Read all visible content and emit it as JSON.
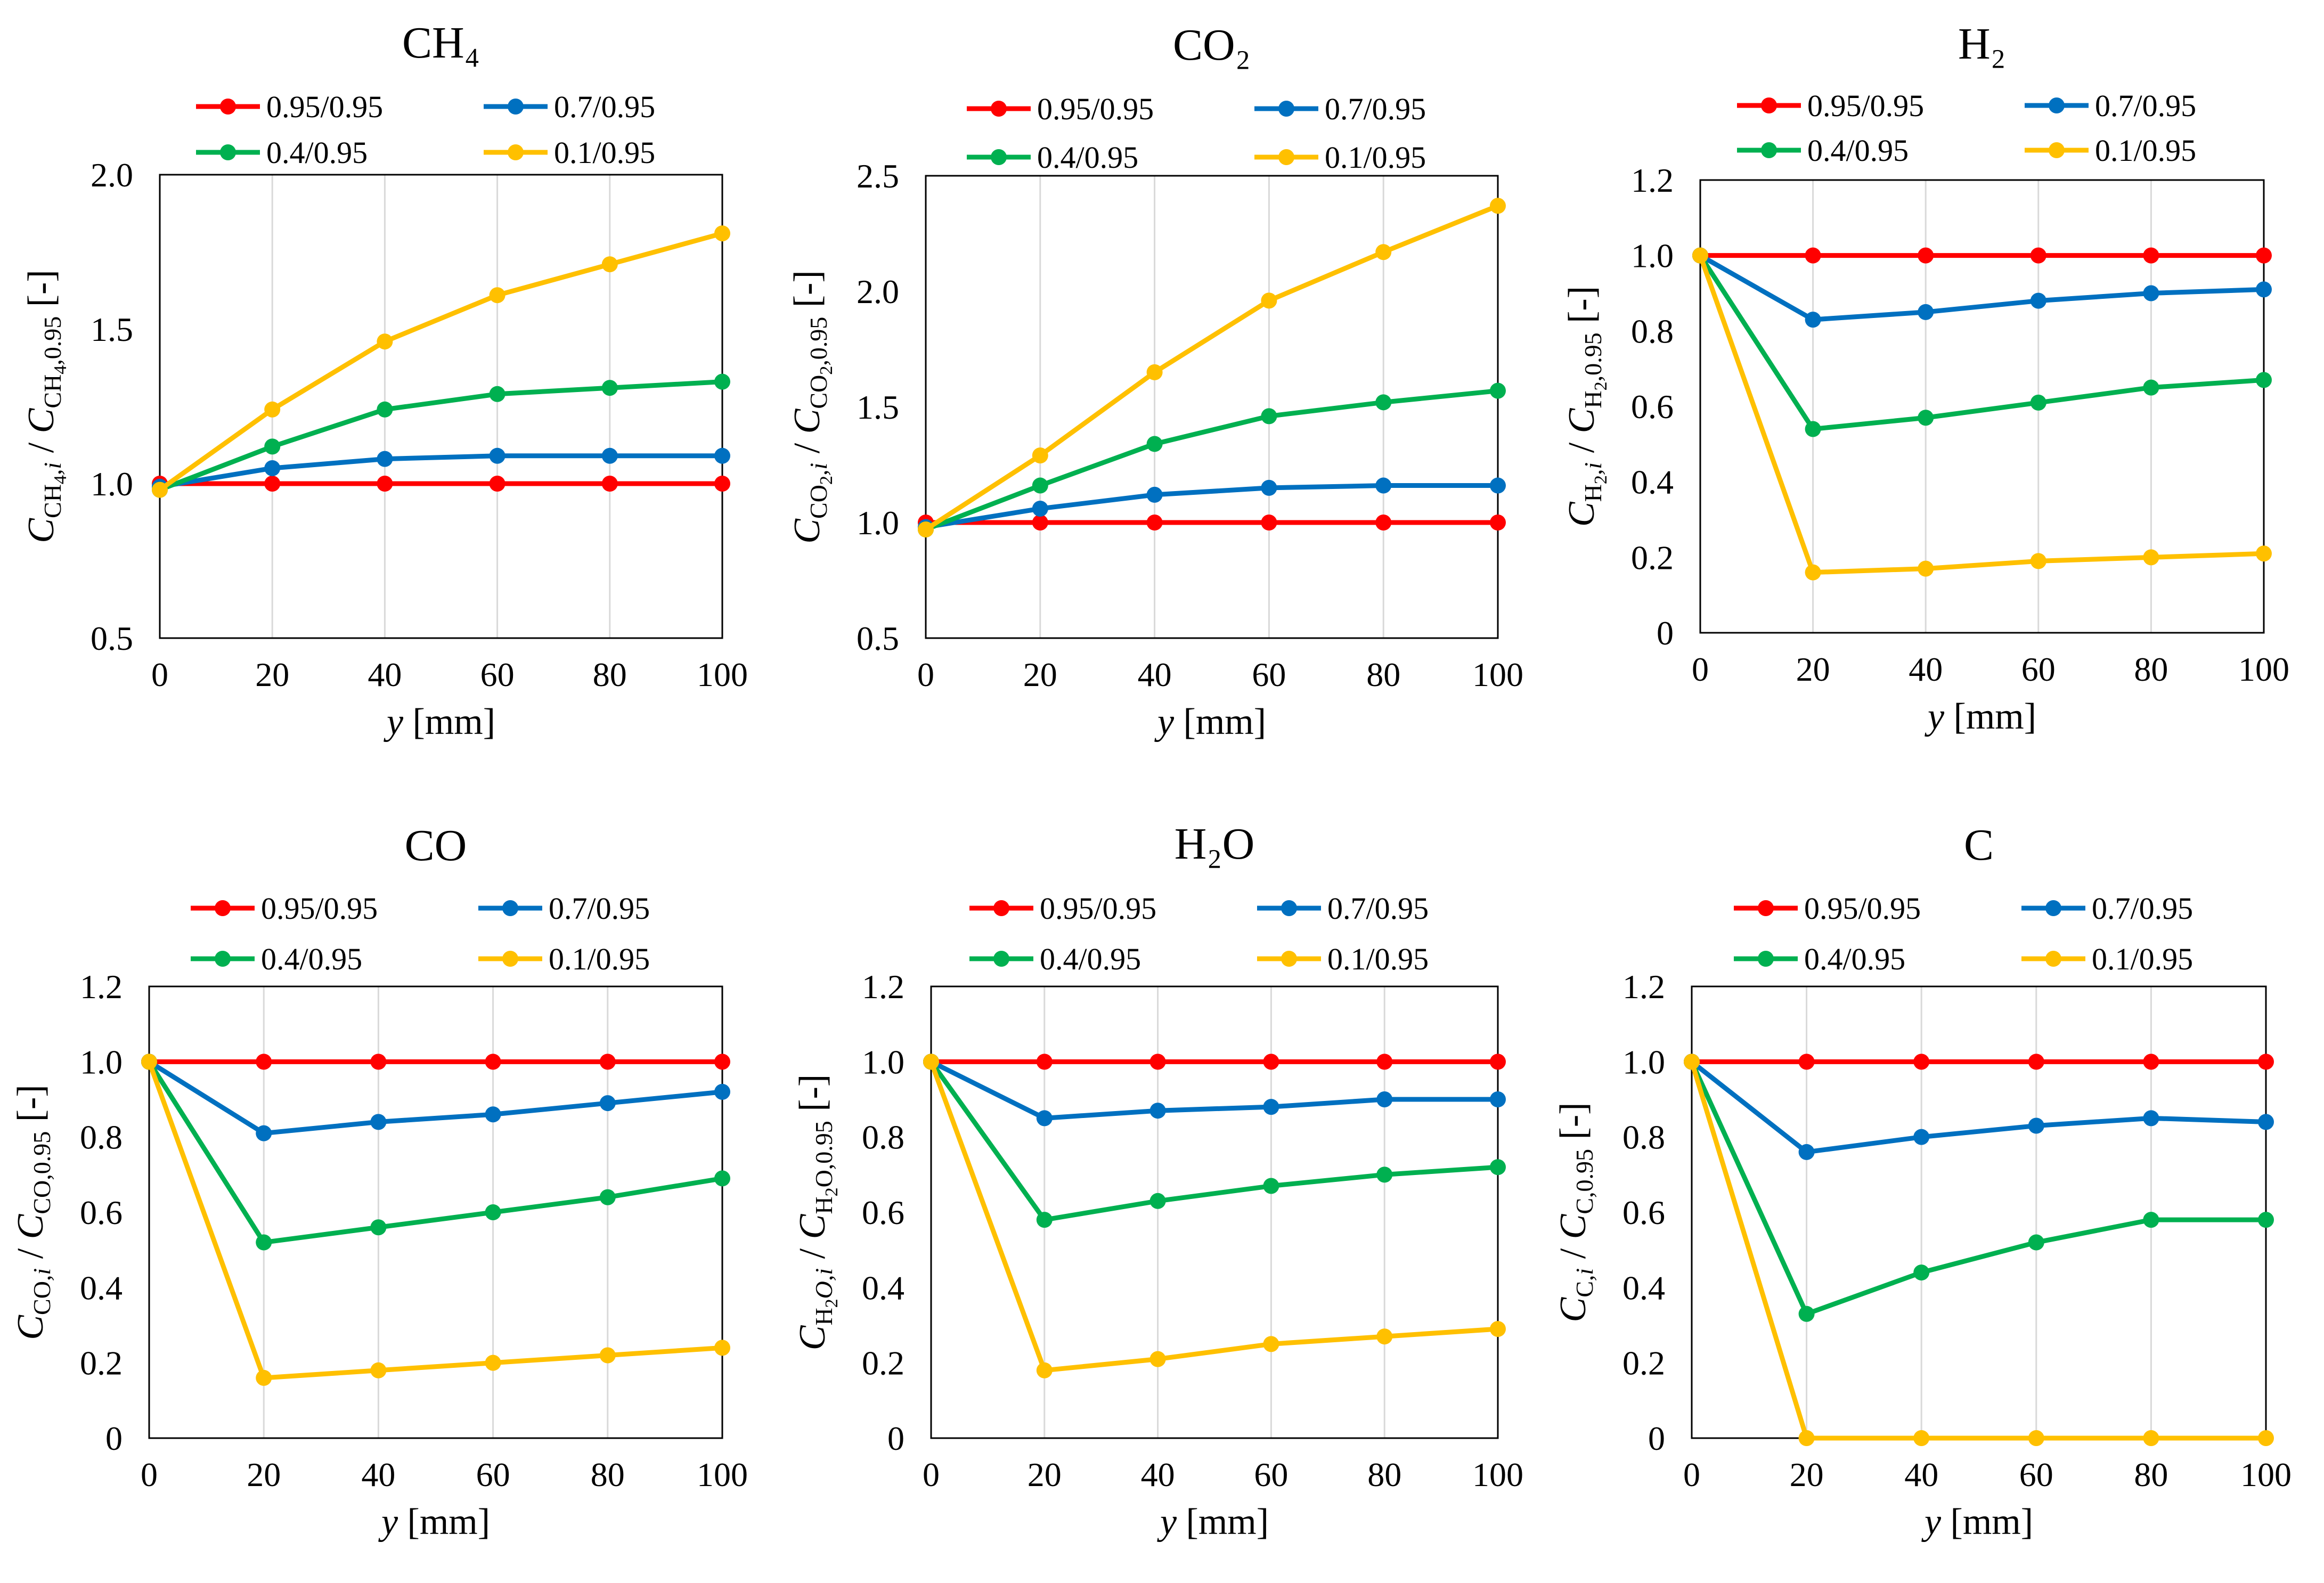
{
  "figure": {
    "series_styles": [
      {
        "name": "0.95/0.95",
        "color": "#FF0000"
      },
      {
        "name": "0.7/0.95",
        "color": "#0070C0"
      },
      {
        "name": "0.4/0.95",
        "color": "#00B050"
      },
      {
        "name": "0.1/0.95",
        "color": "#FFC000"
      }
    ]
  },
  "chart_data": [
    {
      "type": "line",
      "title": "CH₄",
      "xlabel": "y [mm]",
      "ylabel": "C_CH4,i / C_CH4,0.95 [-]",
      "x": [
        0,
        20,
        40,
        60,
        80,
        100
      ],
      "xticks": [
        "0",
        "20",
        "40",
        "60",
        "80",
        "100"
      ],
      "yticks": [
        "0.5",
        "1.0",
        "1.5",
        "2.0"
      ],
      "ylim": [
        0.5,
        2.0
      ],
      "grid": "vertical",
      "legend": "top, 2 columns",
      "series": [
        {
          "name": "0.95/0.95",
          "values": [
            1.0,
            1.0,
            1.0,
            1.0,
            1.0,
            1.0
          ]
        },
        {
          "name": "0.7/0.95",
          "values": [
            0.99,
            1.05,
            1.08,
            1.09,
            1.09,
            1.09
          ]
        },
        {
          "name": "0.4/0.95",
          "values": [
            0.98,
            1.12,
            1.24,
            1.29,
            1.31,
            1.33
          ]
        },
        {
          "name": "0.1/0.95",
          "values": [
            0.98,
            1.24,
            1.46,
            1.61,
            1.71,
            1.81
          ]
        }
      ]
    },
    {
      "type": "line",
      "title": "CO₂",
      "xlabel": "y [mm]",
      "ylabel": "C_CO2,i / C_CO2,0.95 [-]",
      "x": [
        0,
        20,
        40,
        60,
        80,
        100
      ],
      "xticks": [
        "0",
        "20",
        "40",
        "60",
        "80",
        "100"
      ],
      "yticks": [
        "0.5",
        "1.0",
        "1.5",
        "2.0",
        "2.5"
      ],
      "ylim": [
        0.5,
        2.5
      ],
      "grid": "vertical",
      "legend": "top, 2 columns",
      "series": [
        {
          "name": "0.95/0.95",
          "values": [
            1.0,
            1.0,
            1.0,
            1.0,
            1.0,
            1.0
          ]
        },
        {
          "name": "0.7/0.95",
          "values": [
            0.98,
            1.06,
            1.12,
            1.15,
            1.16,
            1.16
          ]
        },
        {
          "name": "0.4/0.95",
          "values": [
            0.97,
            1.16,
            1.34,
            1.46,
            1.52,
            1.57
          ]
        },
        {
          "name": "0.1/0.95",
          "values": [
            0.97,
            1.29,
            1.65,
            1.96,
            2.17,
            2.37
          ]
        }
      ]
    },
    {
      "type": "line",
      "title": "H₂",
      "xlabel": "y [mm]",
      "ylabel": "C_H2,i / C_H2,0.95 [-]",
      "x": [
        0,
        20,
        40,
        60,
        80,
        100
      ],
      "xticks": [
        "0",
        "20",
        "40",
        "60",
        "80",
        "100"
      ],
      "yticks": [
        "0",
        "0.2",
        "0.4",
        "0.6",
        "0.8",
        "1.0",
        "1.2"
      ],
      "ylim": [
        0,
        1.2
      ],
      "grid": "vertical",
      "legend": "top, 2 columns",
      "series": [
        {
          "name": "0.95/0.95",
          "values": [
            1.0,
            1.0,
            1.0,
            1.0,
            1.0,
            1.0
          ]
        },
        {
          "name": "0.7/0.95",
          "values": [
            1.0,
            0.83,
            0.85,
            0.88,
            0.9,
            0.91
          ]
        },
        {
          "name": "0.4/0.95",
          "values": [
            1.0,
            0.54,
            0.57,
            0.61,
            0.65,
            0.67
          ]
        },
        {
          "name": "0.1/0.95",
          "values": [
            1.0,
            0.16,
            0.17,
            0.19,
            0.2,
            0.21
          ]
        }
      ]
    },
    {
      "type": "line",
      "title": "CO",
      "xlabel": "y [mm]",
      "ylabel": "C_CO,i / C_CO,0.95 [-]",
      "x": [
        0,
        20,
        40,
        60,
        80,
        100
      ],
      "xticks": [
        "0",
        "20",
        "40",
        "60",
        "80",
        "100"
      ],
      "yticks": [
        "0",
        "0.2",
        "0.4",
        "0.6",
        "0.8",
        "1.0",
        "1.2"
      ],
      "ylim": [
        0,
        1.2
      ],
      "grid": "vertical",
      "legend": "top, 2 columns",
      "series": [
        {
          "name": "0.95/0.95",
          "values": [
            1.0,
            1.0,
            1.0,
            1.0,
            1.0,
            1.0
          ]
        },
        {
          "name": "0.7/0.95",
          "values": [
            1.0,
            0.81,
            0.84,
            0.86,
            0.89,
            0.92
          ]
        },
        {
          "name": "0.4/0.95",
          "values": [
            1.0,
            0.52,
            0.56,
            0.6,
            0.64,
            0.69
          ]
        },
        {
          "name": "0.1/0.95",
          "values": [
            1.0,
            0.16,
            0.18,
            0.2,
            0.22,
            0.24
          ]
        }
      ]
    },
    {
      "type": "line",
      "title": "H₂O",
      "xlabel": "y [mm]",
      "ylabel": "C_H2O,i / C_H2O,0.95 [-]",
      "x": [
        0,
        20,
        40,
        60,
        80,
        100
      ],
      "xticks": [
        "0",
        "20",
        "40",
        "60",
        "80",
        "100"
      ],
      "yticks": [
        "0",
        "0.2",
        "0.4",
        "0.6",
        "0.8",
        "1.0",
        "1.2"
      ],
      "ylim": [
        0,
        1.2
      ],
      "grid": "vertical",
      "legend": "top, 2 columns",
      "series": [
        {
          "name": "0.95/0.95",
          "values": [
            1.0,
            1.0,
            1.0,
            1.0,
            1.0,
            1.0
          ]
        },
        {
          "name": "0.7/0.95",
          "values": [
            1.0,
            0.85,
            0.87,
            0.88,
            0.9,
            0.9
          ]
        },
        {
          "name": "0.4/0.95",
          "values": [
            1.0,
            0.58,
            0.63,
            0.67,
            0.7,
            0.72
          ]
        },
        {
          "name": "0.1/0.95",
          "values": [
            1.0,
            0.18,
            0.21,
            0.25,
            0.27,
            0.29
          ]
        }
      ]
    },
    {
      "type": "line",
      "title": "C",
      "xlabel": "y [mm]",
      "ylabel": "C_C,i / C_C,0.95 [-]",
      "x": [
        0,
        20,
        40,
        60,
        80,
        100
      ],
      "xticks": [
        "0",
        "20",
        "40",
        "60",
        "80",
        "100"
      ],
      "yticks": [
        "0",
        "0.2",
        "0.4",
        "0.6",
        "0.8",
        "1.0",
        "1.2"
      ],
      "ylim": [
        0,
        1.2
      ],
      "grid": "vertical",
      "legend": "top, 2 columns",
      "series": [
        {
          "name": "0.95/0.95",
          "values": [
            1.0,
            1.0,
            1.0,
            1.0,
            1.0,
            1.0
          ]
        },
        {
          "name": "0.7/0.95",
          "values": [
            1.0,
            0.76,
            0.8,
            0.83,
            0.85,
            0.84
          ]
        },
        {
          "name": "0.4/0.95",
          "values": [
            1.0,
            0.33,
            0.44,
            0.52,
            0.58,
            0.58
          ]
        },
        {
          "name": "0.1/0.95",
          "values": [
            1.0,
            0.0,
            0.0,
            0.0,
            0.0,
            0.0
          ]
        }
      ]
    }
  ],
  "labels": {
    "ylabels": [
      {
        "symbol": "C",
        "sub1": "CH",
        "sub2": "4",
        "sub3": ",i",
        "slash": " / ",
        "symbol2": "C",
        "sub4": "CH",
        "sub5": "4",
        "sub6": ",0.95",
        "unit": " [-]"
      },
      {
        "symbol": "C",
        "sub1": "CO",
        "sub2": "2",
        "sub3": ",i",
        "slash": " / ",
        "symbol2": "C",
        "sub4": "CO",
        "sub5": "2",
        "sub6": ",0.95",
        "unit": " [-]"
      },
      {
        "symbol": "C",
        "sub1": "H",
        "sub2": "2",
        "sub3": ",i",
        "slash": " / ",
        "symbol2": "C",
        "sub4": "H",
        "sub5": "2",
        "sub6": ",0.95",
        "unit": " [-]"
      },
      {
        "symbol": "C",
        "sub1": "CO",
        "sub2": "",
        "sub3": ",i",
        "slash": " / ",
        "symbol2": "C",
        "sub4": "CO",
        "sub5": "",
        "sub6": ",0.95",
        "unit": " [-]"
      },
      {
        "symbol": "C",
        "sub1": "H",
        "sub2": "2",
        "sub3": "O,i",
        "slash": " / ",
        "symbol2": "C",
        "sub4": "H",
        "sub5": "2",
        "sub6": "O,0.95",
        "unit": " [-]"
      },
      {
        "symbol": "C",
        "sub1": "C",
        "sub2": "",
        "sub3": ",i",
        "slash": " / ",
        "symbol2": "C",
        "sub4": "C",
        "sub5": "",
        "sub6": ",0.95",
        "unit": " [-]"
      }
    ],
    "xlabel": {
      "var": "y",
      "unit": " [mm]"
    }
  }
}
